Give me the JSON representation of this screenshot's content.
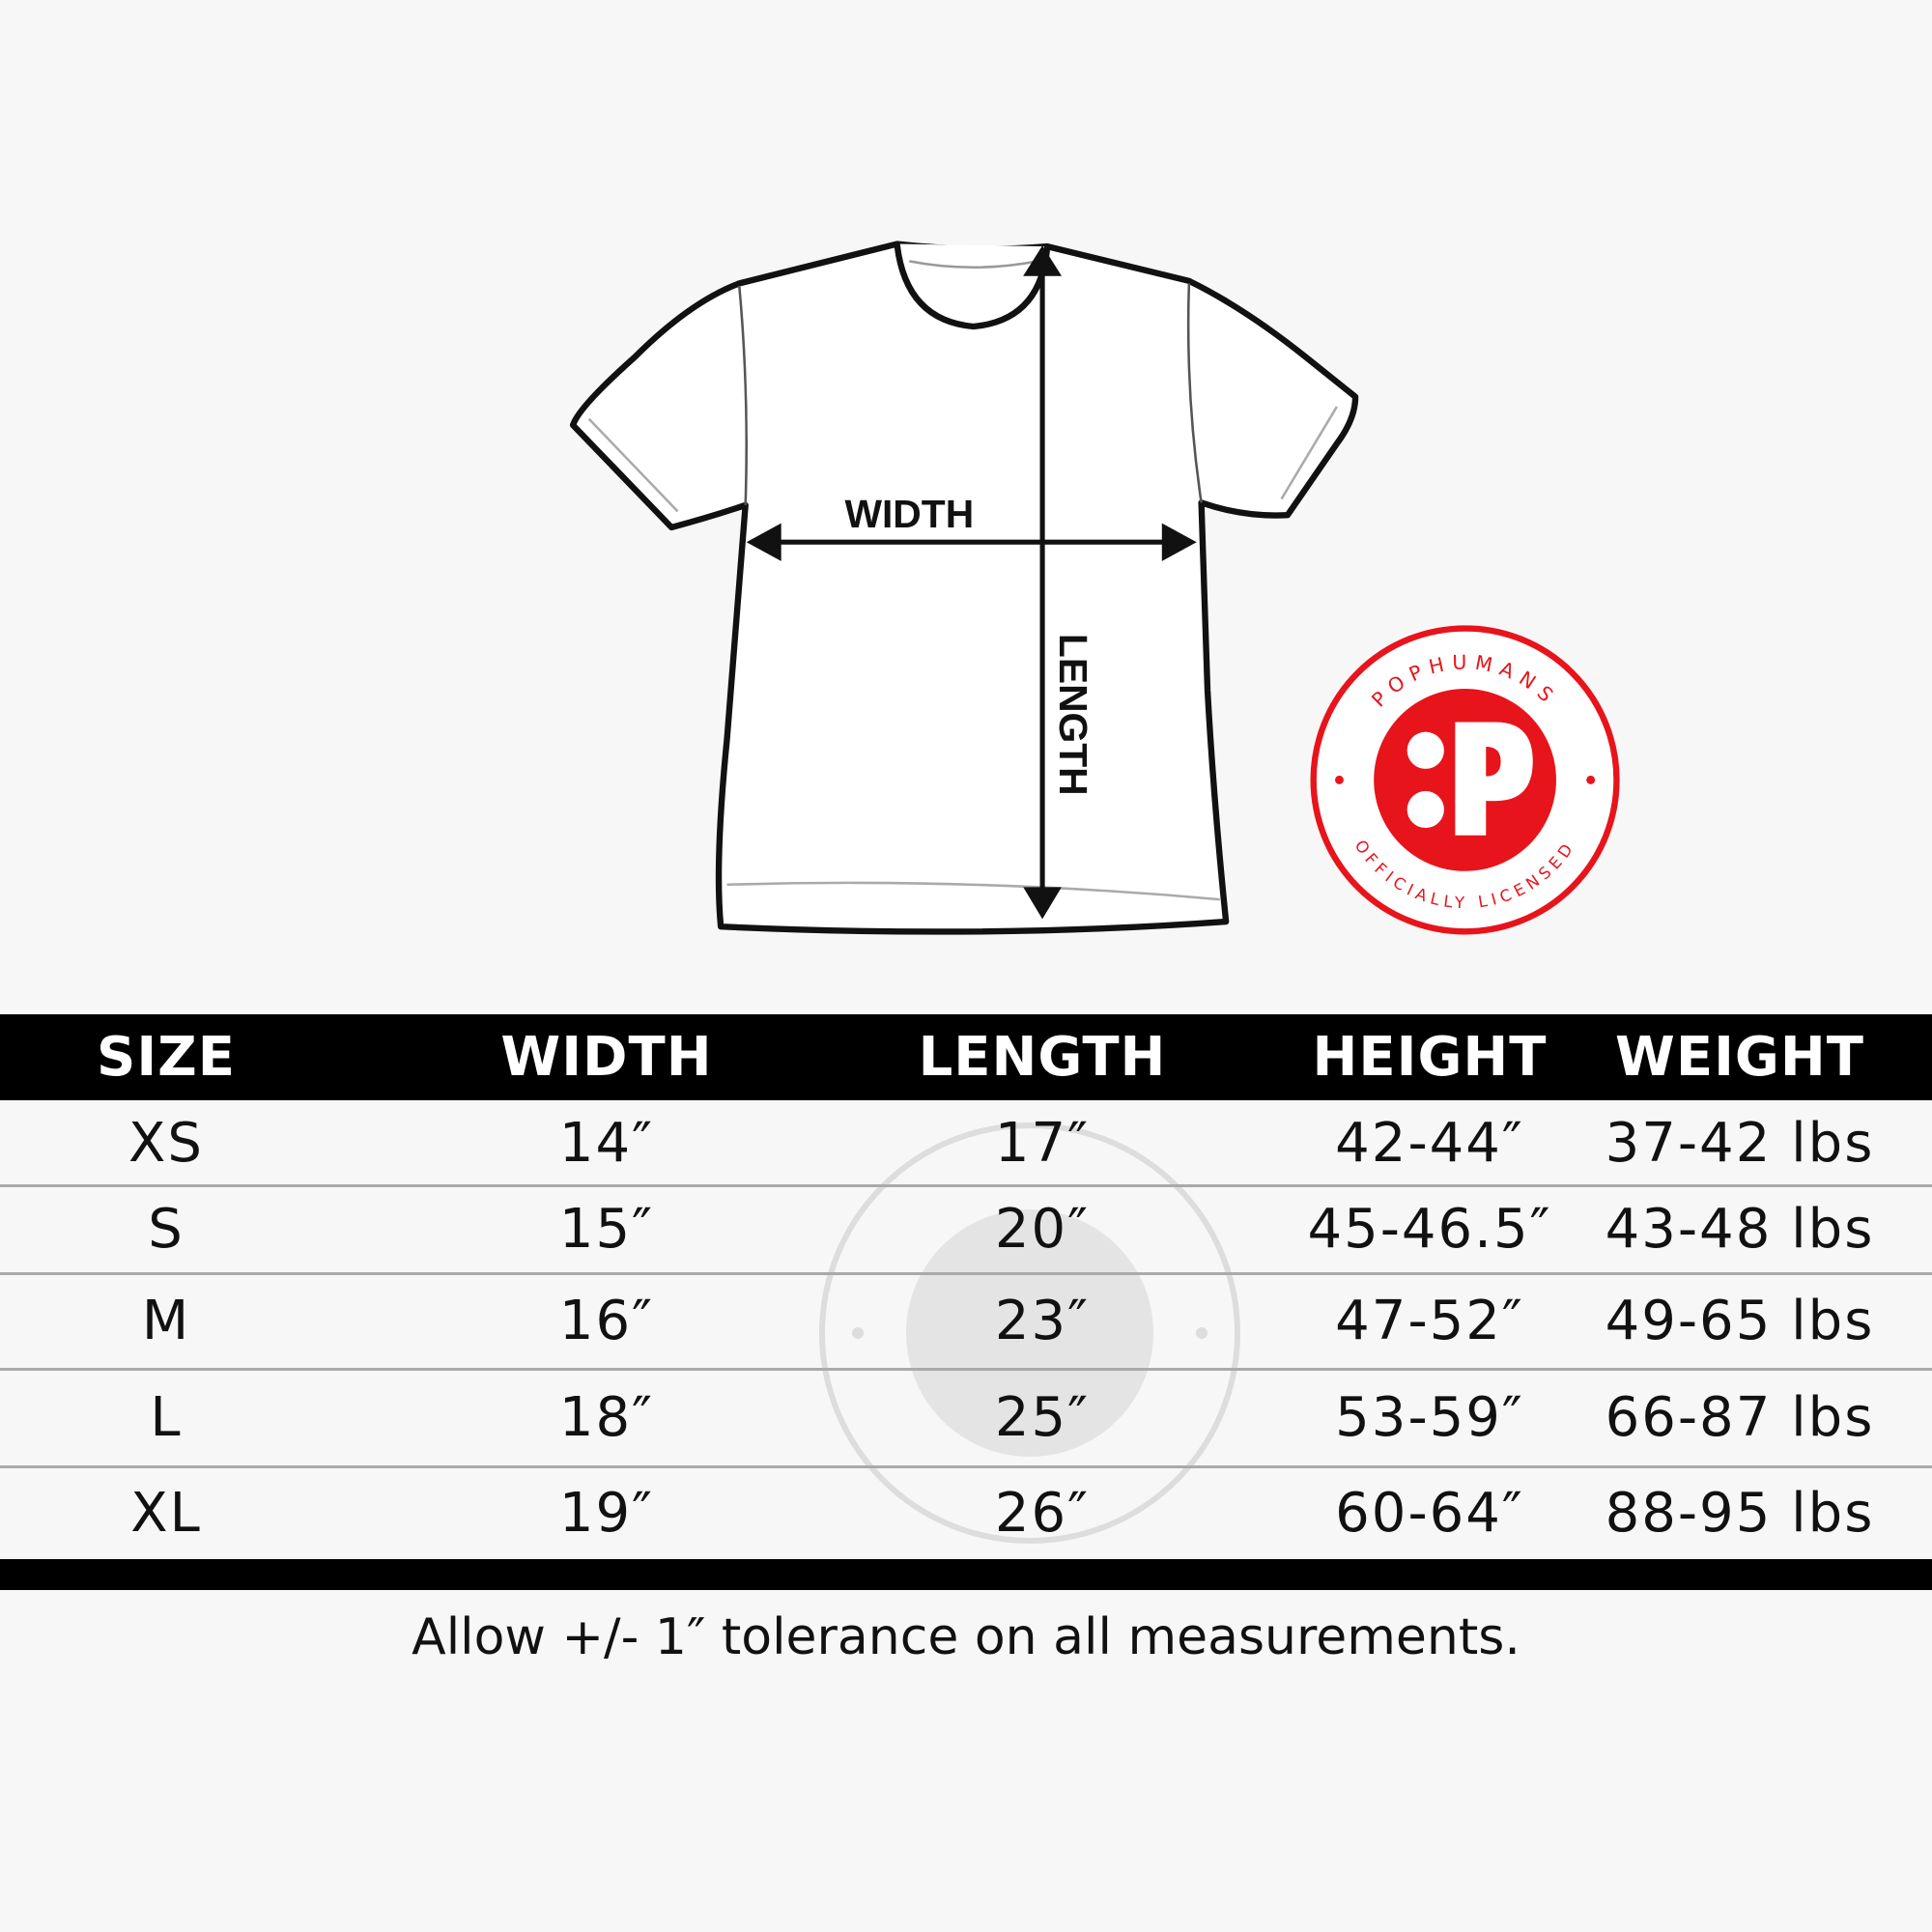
{
  "diagram": {
    "width_label": "WIDTH",
    "length_label": "LENGTH"
  },
  "badge": {
    "brand": "POPHUMANS",
    "tagline": "OFFICIALLY LICENSED",
    "color": "#e8141b"
  },
  "table": {
    "headers": [
      "SIZE",
      "WIDTH",
      "LENGTH",
      "HEIGHT",
      "WEIGHT"
    ],
    "rows": [
      [
        "XS",
        "14″",
        "17″",
        "42-44″",
        "37-42 lbs"
      ],
      [
        "S",
        "15″",
        "20″",
        "45-46.5″",
        "43-48 lbs"
      ],
      [
        "M",
        "16″",
        "23″",
        "47-52″",
        "49-65 lbs"
      ],
      [
        "L",
        "18″",
        "25″",
        "53-59″",
        "66-87 lbs"
      ],
      [
        "XL",
        "19″",
        "26″",
        "60-64″",
        "88-95 lbs"
      ]
    ]
  },
  "footer": {
    "note": "Allow +/- 1″ tolerance on all measurements."
  }
}
